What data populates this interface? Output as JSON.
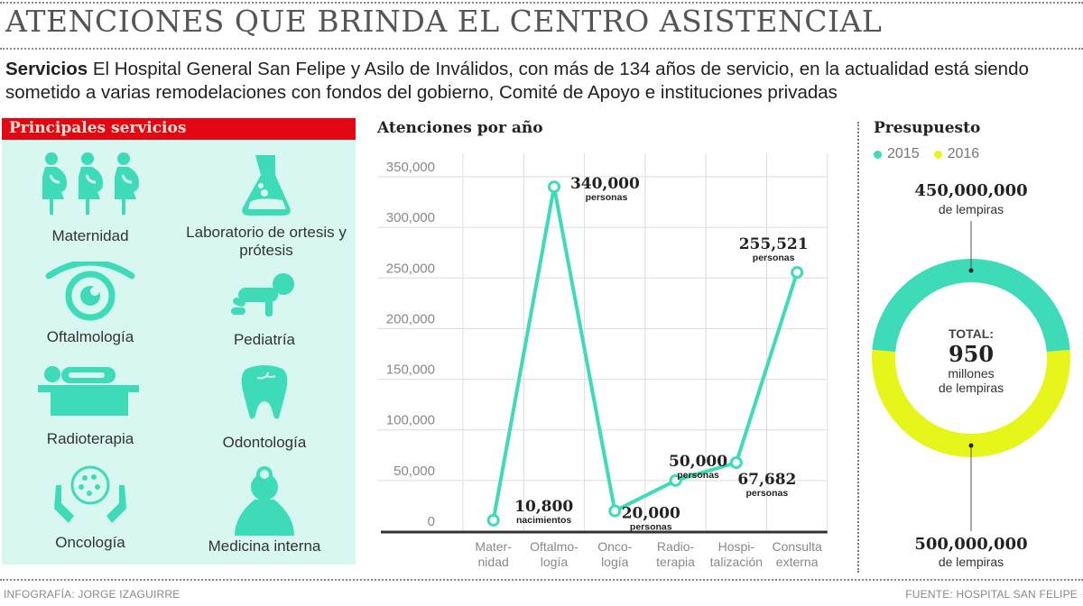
{
  "header": {
    "title": "ATENCIONES QUE BRINDA EL CENTRO ASISTENCIAL",
    "intro_bold": "Servicios",
    "intro_text": " El Hospital General San Felipe y Asilo de Inválidos, con más de 134 años de servicio, en la actualidad está siendo sometido a varias remodelaciones con fondos del gobierno, Comité de Apoyo e instituciones privadas"
  },
  "services": {
    "title": "Principales servicios",
    "items": [
      {
        "label": "Maternidad",
        "icon": "pregnant-women-icon"
      },
      {
        "label": "Laboratorio de ortesis y prótesis",
        "icon": "lab-flask-icon"
      },
      {
        "label": "Oftalmología",
        "icon": "eye-icon"
      },
      {
        "label": "Pediatría",
        "icon": "crawling-baby-icon"
      },
      {
        "label": "Radioterapia",
        "icon": "radiotherapy-bed-icon"
      },
      {
        "label": "Odontología",
        "icon": "tooth-icon"
      },
      {
        "label": "Oncología",
        "icon": "hands-cell-icon"
      },
      {
        "label": "Medicina interna",
        "icon": "doctor-icon"
      }
    ]
  },
  "colors": {
    "teal": "#3ddbb8",
    "lime": "#e6f61a",
    "red": "#e30613",
    "panel": "#d8f7f0"
  },
  "chart_data": [
    {
      "type": "line",
      "title": "Atenciones por año",
      "categories": [
        "Mater-\nnidad",
        "Oftalmo-\nlogía",
        "Onco-\nlogía",
        "Radio-\nterapia",
        "Hospi-\ntalización",
        "Consulta\nexterna"
      ],
      "values": [
        10800,
        340000,
        20000,
        50000,
        67682,
        255521
      ],
      "data_labels": [
        {
          "value": "10,800",
          "unit": "nacimientos"
        },
        {
          "value": "340,000",
          "unit": "personas"
        },
        {
          "value": "20,000",
          "unit": "personas"
        },
        {
          "value": "50,000",
          "unit": "personas"
        },
        {
          "value": "67,682",
          "unit": "personas"
        },
        {
          "value": "255,521",
          "unit": "personas"
        }
      ],
      "ylim": [
        0,
        350000
      ],
      "yticks": [
        0,
        50000,
        100000,
        150000,
        200000,
        250000,
        300000,
        350000
      ],
      "ytick_labels": [
        "0",
        "50,000",
        "100,000",
        "150,000",
        "200,000",
        "250,000",
        "300,000",
        "350,000"
      ],
      "grid": true,
      "xlabel": "",
      "ylabel": ""
    },
    {
      "type": "pie",
      "title": "Presupuesto",
      "legend": [
        "2015",
        "2016"
      ],
      "legend_position": "top-left",
      "slices": [
        {
          "name": "2015",
          "value": 450000000,
          "label": "450,000,000",
          "unit": "de lempiras"
        },
        {
          "name": "2016",
          "value": 500000000,
          "label": "500,000,000",
          "unit": "de lempiras"
        }
      ],
      "center": {
        "label": "TOTAL:",
        "value": "950",
        "unit_line1": "millones",
        "unit_line2": "de lempiras"
      }
    }
  ],
  "footer": {
    "credit": "INFOGRAFÍA: JORGE IZAGUIRRE",
    "source": "FUENTE: HOSPITAL SAN FELIPE"
  }
}
